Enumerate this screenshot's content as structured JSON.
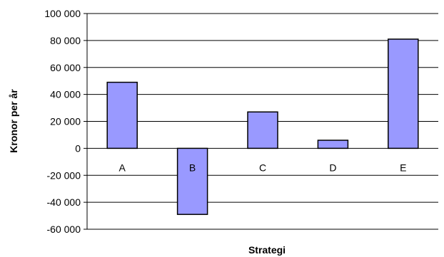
{
  "chart_data": {
    "type": "bar",
    "title": "",
    "xlabel": "Strategi",
    "ylabel": "Kronor per år",
    "categories": [
      "A",
      "B",
      "C",
      "D",
      "E"
    ],
    "values": [
      49000,
      -49000,
      27000,
      6000,
      81000
    ],
    "ylim": [
      -60000,
      100000
    ],
    "yticks": [
      100000,
      80000,
      60000,
      40000,
      20000,
      0,
      -20000,
      -40000,
      -60000
    ],
    "ytick_labels": [
      "100 000",
      "80 000",
      "60 000",
      "40 000",
      "20 000",
      "0",
      "-20 000",
      "-40 000",
      "-60 000"
    ],
    "grid": true,
    "legend": "none",
    "colors": {
      "bar_fill": "#9999ff",
      "bar_stroke": "#000000",
      "grid": "#000000",
      "axis": "#000000"
    }
  }
}
